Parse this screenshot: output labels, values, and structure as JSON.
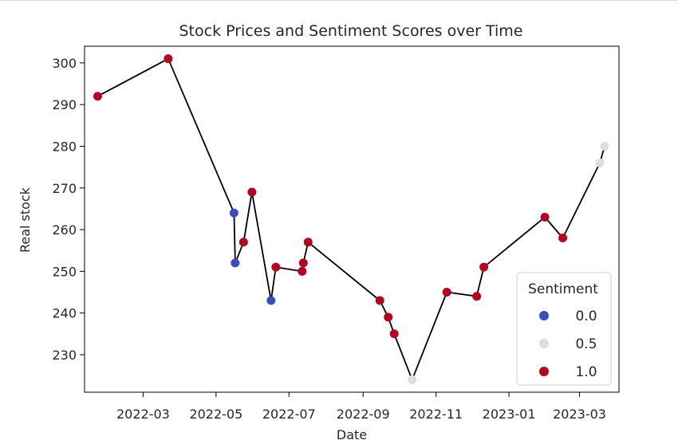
{
  "chart_data": {
    "type": "scatter",
    "title": "Stock Prices and Sentiment Scores over Time",
    "xlabel": "Date",
    "ylabel": "Real stock",
    "x_is_date": true,
    "xlim": [
      "2022-01-11",
      "2023-04-03"
    ],
    "ylim": [
      221,
      304
    ],
    "x_ticks": [
      {
        "date": "2022-03-01",
        "label": "2022-03"
      },
      {
        "date": "2022-05-01",
        "label": "2022-05"
      },
      {
        "date": "2022-07-01",
        "label": "2022-07"
      },
      {
        "date": "2022-09-01",
        "label": "2022-09"
      },
      {
        "date": "2022-11-01",
        "label": "2022-11"
      },
      {
        "date": "2023-01-01",
        "label": "2023-01"
      },
      {
        "date": "2023-03-01",
        "label": "2023-03"
      }
    ],
    "y_ticks": [
      230,
      240,
      250,
      260,
      270,
      280,
      290,
      300
    ],
    "grid": false,
    "line_color": "#000000",
    "legend": {
      "title": "Sentiment",
      "placement": "lower-right",
      "entries": [
        {
          "label": "0.0",
          "color": "#3b4cc0"
        },
        {
          "label": "0.5",
          "color": "#dddddd"
        },
        {
          "label": "1.0",
          "color": "#b40426"
        }
      ]
    },
    "points": [
      {
        "x": "2022-01-22",
        "y": 292,
        "sentiment": 1.0
      },
      {
        "x": "2022-03-22",
        "y": 301,
        "sentiment": 1.0
      },
      {
        "x": "2022-05-16",
        "y": 264,
        "sentiment": 0.0
      },
      {
        "x": "2022-05-17",
        "y": 252,
        "sentiment": 0.0
      },
      {
        "x": "2022-05-24",
        "y": 257,
        "sentiment": 1.0
      },
      {
        "x": "2022-05-31",
        "y": 269,
        "sentiment": 1.0
      },
      {
        "x": "2022-06-16",
        "y": 243,
        "sentiment": 0.0
      },
      {
        "x": "2022-06-20",
        "y": 251,
        "sentiment": 1.0
      },
      {
        "x": "2022-07-12",
        "y": 250,
        "sentiment": 1.0
      },
      {
        "x": "2022-07-13",
        "y": 252,
        "sentiment": 1.0
      },
      {
        "x": "2022-07-17",
        "y": 257,
        "sentiment": 1.0
      },
      {
        "x": "2022-09-15",
        "y": 243,
        "sentiment": 1.0
      },
      {
        "x": "2022-09-22",
        "y": 239,
        "sentiment": 1.0
      },
      {
        "x": "2022-09-27",
        "y": 235,
        "sentiment": 1.0
      },
      {
        "x": "2022-10-12",
        "y": 224,
        "sentiment": 0.5
      },
      {
        "x": "2022-11-10",
        "y": 245,
        "sentiment": 1.0
      },
      {
        "x": "2022-12-05",
        "y": 244,
        "sentiment": 1.0
      },
      {
        "x": "2022-12-11",
        "y": 251,
        "sentiment": 1.0
      },
      {
        "x": "2023-01-31",
        "y": 263,
        "sentiment": 1.0
      },
      {
        "x": "2023-02-15",
        "y": 258,
        "sentiment": 1.0
      },
      {
        "x": "2023-03-18",
        "y": 276,
        "sentiment": 0.5
      },
      {
        "x": "2023-03-22",
        "y": 280,
        "sentiment": 0.5
      }
    ]
  }
}
